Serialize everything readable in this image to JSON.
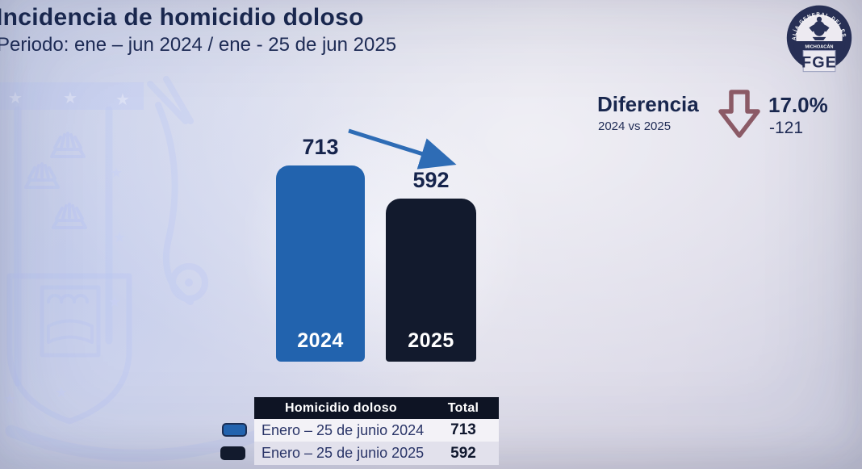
{
  "header": {
    "title": "Incidencia de homicidio doloso",
    "subtitle": "Periodo: ene – jun 2024 / ene - 25 de jun 2025"
  },
  "logo": {
    "ring_text": "FISCALÍA GENERAL DEL ESTADO",
    "state": "MICHOACÁN",
    "acronym": "FGE"
  },
  "difference": {
    "label": "Diferencia",
    "sublabel": "2024 vs 2025",
    "percent": "17.0%",
    "delta": "-121",
    "arrow_icon": "down-block-arrow",
    "arrow_color": "#8b5a66"
  },
  "chart_data": {
    "type": "bar",
    "title": "Incidencia de homicidio doloso",
    "categories": [
      "2024",
      "2025"
    ],
    "values": [
      713,
      592
    ],
    "series": [
      {
        "name": "Enero – 25 de junio 2024",
        "value": 713,
        "color": "#2263ae"
      },
      {
        "name": "Enero – 25 de junio 2025",
        "value": 592,
        "color": "#121a2d"
      }
    ],
    "ylim": [
      0,
      760
    ],
    "grid": false,
    "legend_position": "bottom-table",
    "trend": "down",
    "trend_arrow_color": "#2e6cb5",
    "annotations": {
      "difference_percent": "17.0%",
      "difference_absolute": -121
    }
  },
  "table": {
    "headers": [
      "Homicidio doloso",
      "Total"
    ],
    "rows": [
      {
        "label": "Enero – 25 de junio 2024",
        "total": "713",
        "swatch_color": "#2263ae"
      },
      {
        "label": "Enero – 25 de junio 2025",
        "total": "592",
        "swatch_color": "#121a2d"
      }
    ]
  },
  "colors": {
    "background": "#d8daeb",
    "text_navy": "#19274e",
    "bar_2024": "#2263ae",
    "bar_2025": "#121a2d",
    "table_header_bg": "#0e1424",
    "watermark_blue": "#b4c1f4",
    "diff_arrow_maroon": "#8b5a66",
    "trend_arrow_blue": "#2e6cb5"
  },
  "icons": {
    "down-block-arrow": "⇩",
    "trend-down-arrow": "↘",
    "star": "★",
    "crown": "♛"
  }
}
